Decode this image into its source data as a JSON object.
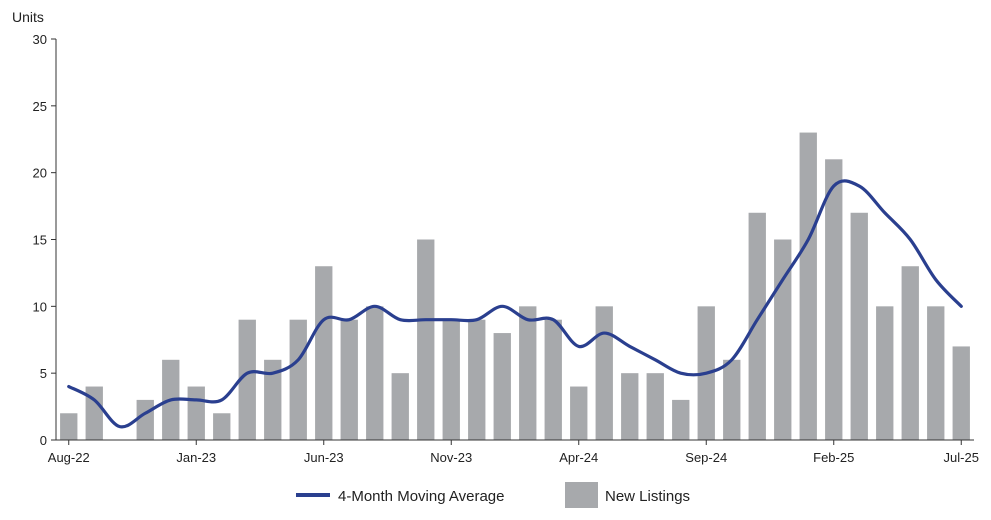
{
  "chart_data": {
    "type": "bar",
    "ylabel": "Units",
    "ylim": [
      0,
      30
    ],
    "yticks": [
      "0",
      "5",
      "10",
      "15",
      "20",
      "25",
      "30"
    ],
    "x_labels": [
      {
        "index": 0,
        "label": "Aug-22"
      },
      {
        "index": 5,
        "label": "Jan-23"
      },
      {
        "index": 10,
        "label": "Jun-23"
      },
      {
        "index": 15,
        "label": "Nov-23"
      },
      {
        "index": 20,
        "label": "Apr-24"
      },
      {
        "index": 25,
        "label": "Sep-24"
      },
      {
        "index": 30,
        "label": "Feb-25"
      },
      {
        "index": 35,
        "label": "Jul-25"
      }
    ],
    "categories": [
      "Aug-22",
      "Sep-22",
      "Oct-22",
      "Nov-22",
      "Dec-22",
      "Jan-23",
      "Feb-23",
      "Mar-23",
      "Apr-23",
      "May-23",
      "Jun-23",
      "Jul-23",
      "Aug-23",
      "Sep-23",
      "Oct-23",
      "Nov-23",
      "Dec-23",
      "Jan-24",
      "Feb-24",
      "Mar-24",
      "Apr-24",
      "May-24",
      "Jun-24",
      "Jul-24",
      "Aug-24",
      "Sep-24",
      "Oct-24",
      "Nov-24",
      "Dec-24",
      "Jan-25",
      "Feb-25",
      "Mar-25",
      "Apr-25",
      "May-25",
      "Jun-25",
      "Jul-25"
    ],
    "series": [
      {
        "name": "New Listings",
        "type": "bar",
        "color": "#a7a9ac",
        "values": [
          2,
          4,
          0,
          3,
          6,
          4,
          2,
          9,
          6,
          9,
          13,
          9,
          10,
          5,
          15,
          9,
          9,
          8,
          10,
          9,
          4,
          10,
          5,
          5,
          3,
          10,
          6,
          17,
          15,
          23,
          21,
          17,
          10,
          13,
          10,
          7
        ]
      },
      {
        "name": "4-Month Moving Average",
        "type": "line",
        "color": "#2a3f8f",
        "values": [
          4,
          3,
          1,
          2,
          3,
          3,
          3,
          5,
          5,
          6,
          9,
          9,
          10,
          9,
          9,
          9,
          9,
          10,
          9,
          9,
          7,
          8,
          7,
          6,
          5,
          5,
          6,
          9,
          12,
          15,
          19,
          19,
          17,
          15,
          12,
          10
        ]
      }
    ]
  },
  "legend": {
    "line_label": "4-Month Moving Average",
    "bar_label": "New Listings"
  }
}
